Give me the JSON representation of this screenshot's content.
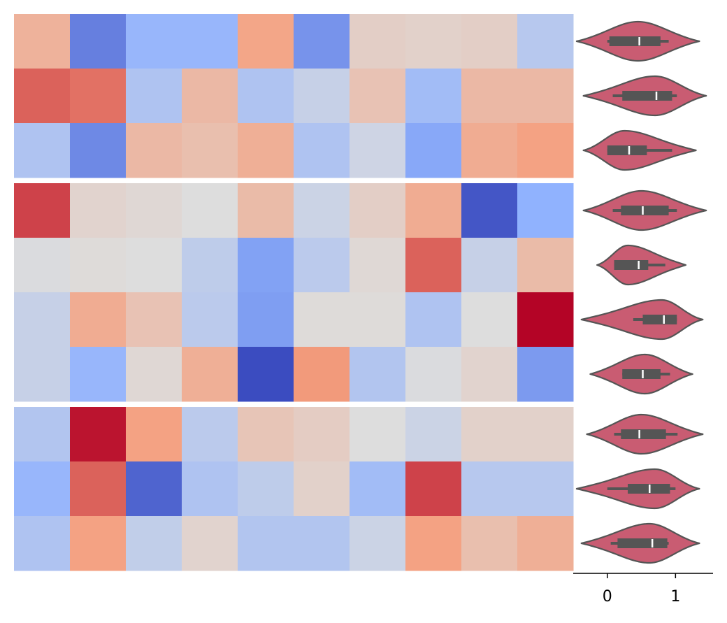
{
  "chart_data": [
    {
      "type": "heatmap",
      "colormap": "coolwarm",
      "vmin": -1.0,
      "vmax": 1.0,
      "row_groups": [
        3,
        4,
        3
      ],
      "values": [
        [
          0.35,
          -0.75,
          -0.45,
          -0.45,
          0.45,
          -0.65,
          0.12,
          0.1,
          0.12,
          -0.25
        ],
        [
          0.7,
          0.65,
          -0.3,
          0.3,
          -0.3,
          -0.15,
          0.22,
          -0.38,
          0.3,
          0.3
        ],
        [
          -0.3,
          -0.7,
          0.3,
          0.25,
          0.38,
          -0.3,
          -0.1,
          -0.55,
          0.4,
          0.48
        ],
        [
          0.8,
          0.08,
          0.05,
          0.0,
          0.28,
          -0.12,
          0.12,
          0.4,
          -0.95,
          -0.5
        ],
        [
          -0.02,
          0.02,
          0.0,
          -0.2,
          -0.58,
          -0.22,
          0.04,
          0.7,
          -0.15,
          0.28
        ],
        [
          -0.15,
          0.4,
          0.22,
          -0.22,
          -0.6,
          0.02,
          0.02,
          -0.3,
          0.0,
          1.0
        ],
        [
          -0.15,
          -0.45,
          0.05,
          0.38,
          -1.0,
          0.52,
          -0.28,
          -0.02,
          0.08,
          -0.62
        ],
        [
          -0.28,
          0.95,
          0.48,
          -0.22,
          0.2,
          0.14,
          0.0,
          -0.12,
          0.1,
          0.1
        ],
        [
          -0.45,
          0.7,
          -0.88,
          -0.3,
          -0.2,
          0.1,
          -0.38,
          0.8,
          -0.25,
          -0.25
        ],
        [
          -0.3,
          0.48,
          -0.18,
          0.08,
          -0.28,
          -0.28,
          -0.12,
          0.48,
          0.25,
          0.38
        ]
      ]
    },
    {
      "type": "violin",
      "orientation": "horizontal",
      "color": "#c95c72",
      "edge_color": "#555555",
      "box_color": "#555555",
      "median_color": "#ffffff",
      "xlim": [
        -0.5,
        1.55
      ],
      "xticks": [
        0,
        1
      ],
      "xtick_labels": [
        "0",
        "1"
      ],
      "violins": [
        {
          "min": -0.45,
          "max": 1.35,
          "peak": 0.45,
          "q1": 0.03,
          "median": 0.47,
          "q3": 0.78,
          "wlo": 0.0,
          "whi": 0.9
        },
        {
          "min": -0.35,
          "max": 1.45,
          "peak": 0.7,
          "q1": 0.22,
          "median": 0.72,
          "q3": 0.95,
          "wlo": 0.08,
          "whi": 1.02
        },
        {
          "min": -0.35,
          "max": 1.3,
          "peak": 0.25,
          "q1": 0.0,
          "median": 0.32,
          "q3": 0.58,
          "wlo": 0.0,
          "whi": 0.95
        },
        {
          "min": -0.35,
          "max": 1.45,
          "peak": 0.5,
          "q1": 0.2,
          "median": 0.52,
          "q3": 0.9,
          "wlo": 0.08,
          "whi": 1.02
        },
        {
          "min": -0.15,
          "max": 1.15,
          "peak": 0.3,
          "q1": 0.1,
          "median": 0.46,
          "q3": 0.6,
          "wlo": 0.1,
          "whi": 0.85
        },
        {
          "min": -0.38,
          "max": 1.4,
          "peak": 0.8,
          "q1": 0.52,
          "median": 0.83,
          "q3": 1.02,
          "wlo": 0.38,
          "whi": 1.02
        },
        {
          "min": -0.25,
          "max": 1.25,
          "peak": 0.55,
          "q1": 0.22,
          "median": 0.52,
          "q3": 0.78,
          "wlo": 0.22,
          "whi": 0.92
        },
        {
          "min": -0.3,
          "max": 1.4,
          "peak": 0.5,
          "q1": 0.2,
          "median": 0.47,
          "q3": 0.86,
          "wlo": 0.1,
          "whi": 1.03
        },
        {
          "min": -0.45,
          "max": 1.35,
          "peak": 0.7,
          "q1": 0.3,
          "median": 0.62,
          "q3": 0.92,
          "wlo": 0.0,
          "whi": 1.0
        },
        {
          "min": -0.38,
          "max": 1.35,
          "peak": 0.62,
          "q1": 0.15,
          "median": 0.66,
          "q3": 0.88,
          "wlo": 0.05,
          "whi": 0.9
        }
      ]
    }
  ]
}
